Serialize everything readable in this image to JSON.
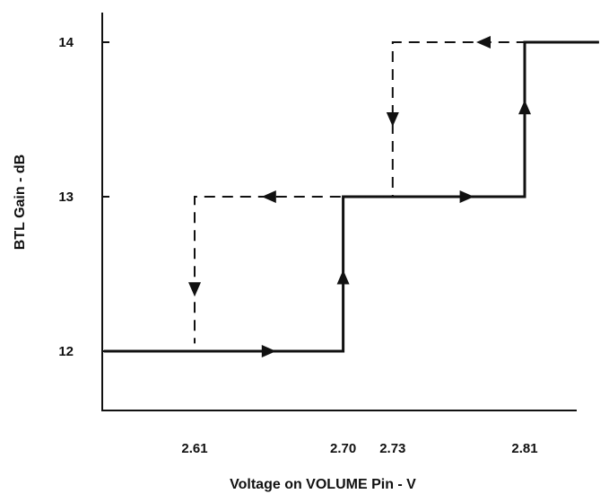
{
  "chart_data": {
    "type": "line",
    "title": "",
    "xlabel": "Voltage on VOLUME Pin - V",
    "ylabel": "BTL Gain - dB",
    "xlim": [
      2.54,
      2.87
    ],
    "ylim": [
      11.6,
      14.2
    ],
    "x_ticks": [
      {
        "value": 2.61,
        "label": "2.61"
      },
      {
        "value": 2.7,
        "label": "2.70"
      },
      {
        "value": 2.73,
        "label": "2.73"
      },
      {
        "value": 2.81,
        "label": "2.81"
      }
    ],
    "y_ticks": [
      {
        "value": 12,
        "label": "12"
      },
      {
        "value": 13,
        "label": "13"
      },
      {
        "value": 14,
        "label": "14"
      }
    ],
    "grid": false,
    "legend": "none",
    "series": [
      {
        "direction": "increasing",
        "style": "solid",
        "color": "#111111",
        "points": [
          [
            2.555,
            12
          ],
          [
            2.7,
            12
          ],
          [
            2.7,
            13
          ],
          [
            2.81,
            13
          ],
          [
            2.81,
            14
          ],
          [
            2.855,
            14
          ]
        ],
        "arrows": [
          {
            "x": 2.655,
            "y": 12,
            "dir": "right"
          },
          {
            "x": 2.7,
            "y": 12.48,
            "dir": "up"
          },
          {
            "x": 2.775,
            "y": 13,
            "dir": "right"
          },
          {
            "x": 2.81,
            "y": 13.58,
            "dir": "up"
          }
        ]
      },
      {
        "direction": "decreasing",
        "style": "dashed",
        "color": "#111111",
        "points": [
          [
            2.855,
            14
          ],
          [
            2.73,
            14
          ],
          [
            2.73,
            13.05
          ],
          [
            2.73,
            13
          ],
          [
            2.61,
            13
          ],
          [
            2.61,
            12.05
          ]
        ],
        "arrows": [
          {
            "x": 2.785,
            "y": 14,
            "dir": "left"
          },
          {
            "x": 2.73,
            "y": 13.5,
            "dir": "down"
          },
          {
            "x": 2.655,
            "y": 13,
            "dir": "left"
          },
          {
            "x": 2.61,
            "y": 12.4,
            "dir": "down"
          }
        ]
      }
    ]
  }
}
